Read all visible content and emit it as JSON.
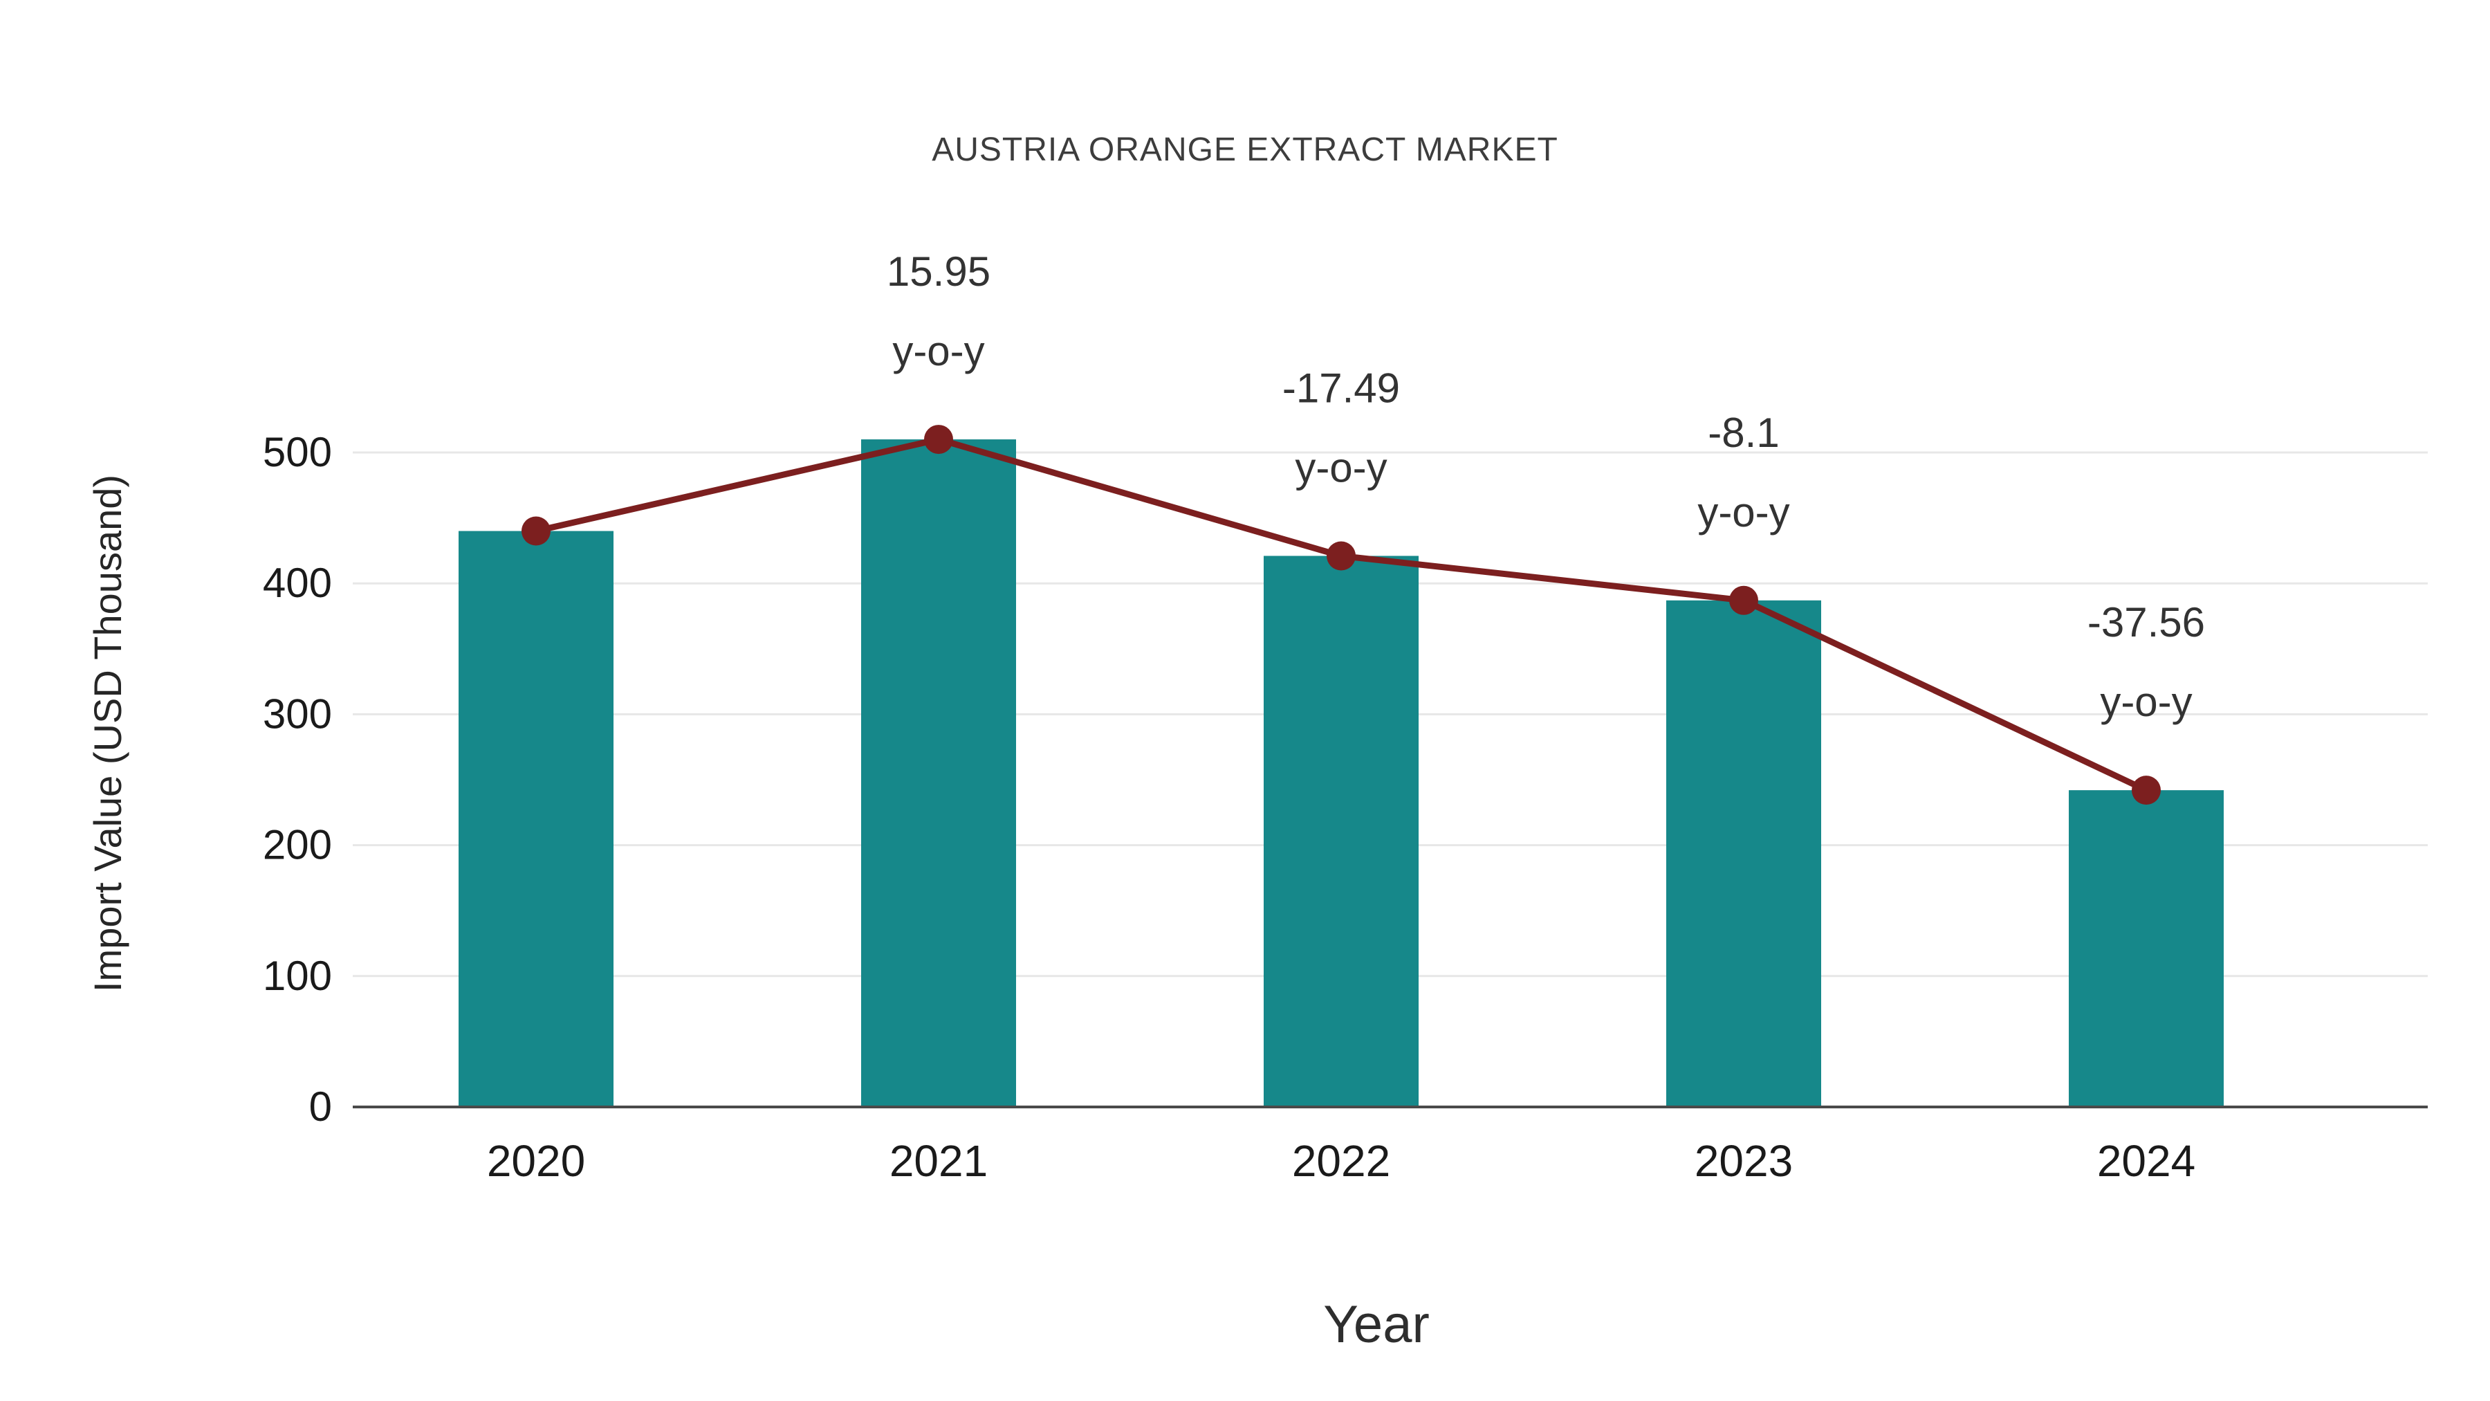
{
  "chart_data": {
    "type": "bar",
    "title": "AUSTRIA ORANGE EXTRACT MARKET",
    "xlabel": "Year",
    "ylabel": "Import Value (USD Thousand)",
    "categories": [
      "2020",
      "2021",
      "2022",
      "2023",
      "2024"
    ],
    "series": [
      {
        "name": "Import Value bars",
        "type": "bar",
        "color": "#16888a",
        "values": [
          440,
          510,
          421,
          387,
          242
        ]
      },
      {
        "name": "Import Value trend line",
        "type": "line",
        "color": "#7c1f1f",
        "values": [
          440,
          510,
          421,
          387,
          242
        ]
      }
    ],
    "annotations": [
      {
        "category": "2021",
        "value": "15.95",
        "suffix": "y-o-y"
      },
      {
        "category": "2022",
        "value": "-17.49",
        "suffix": "y-o-y"
      },
      {
        "category": "2023",
        "value": "-8.1",
        "suffix": "y-o-y"
      },
      {
        "category": "2024",
        "value": "-37.56",
        "suffix": "y-o-y"
      }
    ],
    "yticks": [
      0,
      100,
      200,
      300,
      400,
      500
    ],
    "ylim": [
      0,
      560
    ],
    "grid": true,
    "legend": "none",
    "colors": {
      "bar": "#16888a",
      "line": "#7c1f1f",
      "grid": "#e7e7e7",
      "axis": "#4a4a4a",
      "text": "#2e2e2e"
    }
  }
}
